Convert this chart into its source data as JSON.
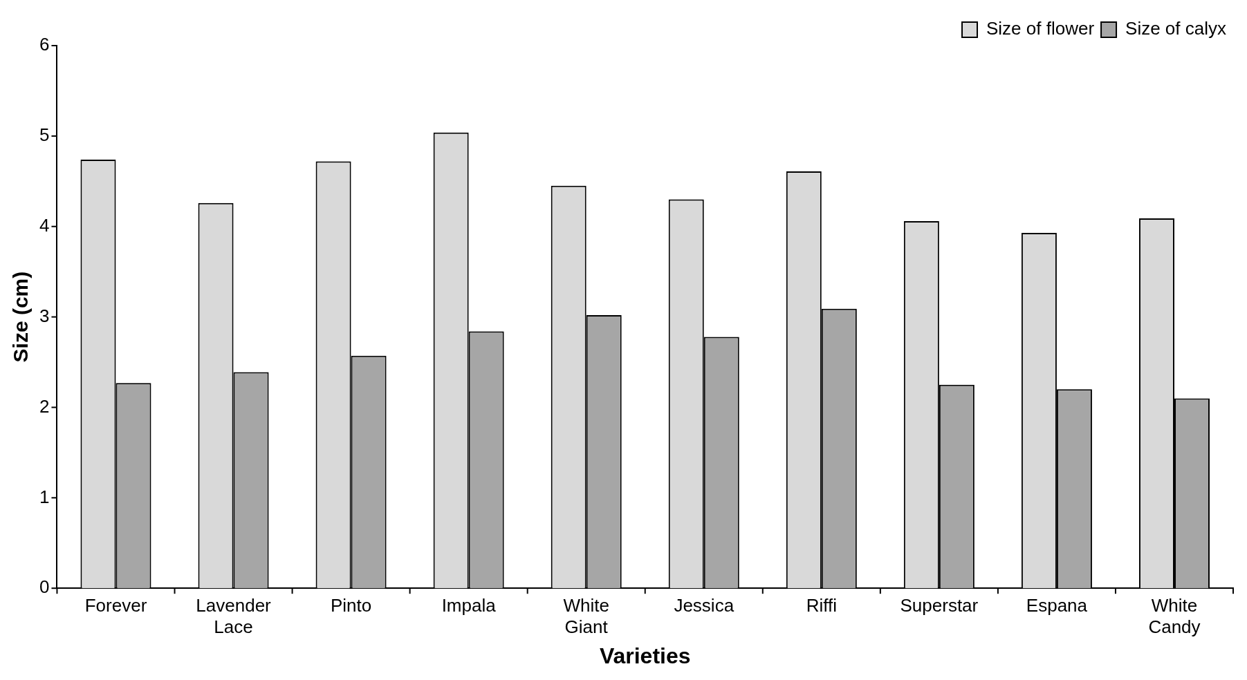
{
  "chart_data": {
    "type": "bar",
    "xlabel": "Varieties",
    "ylabel": "Size (cm)",
    "categories": [
      "Forever",
      "Lavender Lace",
      "Pinto",
      "Impala",
      "White Giant",
      "Jessica",
      "Riffi",
      "Superstar",
      "Espana",
      "White Candy"
    ],
    "series": [
      {
        "name": "Size of flower",
        "color": "#d9d9d9",
        "values": [
          4.74,
          4.26,
          4.72,
          5.04,
          4.45,
          4.3,
          4.61,
          4.06,
          3.93,
          4.09
        ]
      },
      {
        "name": "Size of calyx",
        "color": "#a6a6a6",
        "values": [
          2.27,
          2.39,
          2.57,
          2.84,
          3.02,
          2.78,
          3.09,
          2.25,
          2.2,
          2.1
        ]
      }
    ],
    "ylim": [
      0,
      6
    ],
    "yticks": [
      0,
      1,
      2,
      3,
      4,
      5,
      6
    ],
    "grid": false,
    "legend": "top right"
  }
}
